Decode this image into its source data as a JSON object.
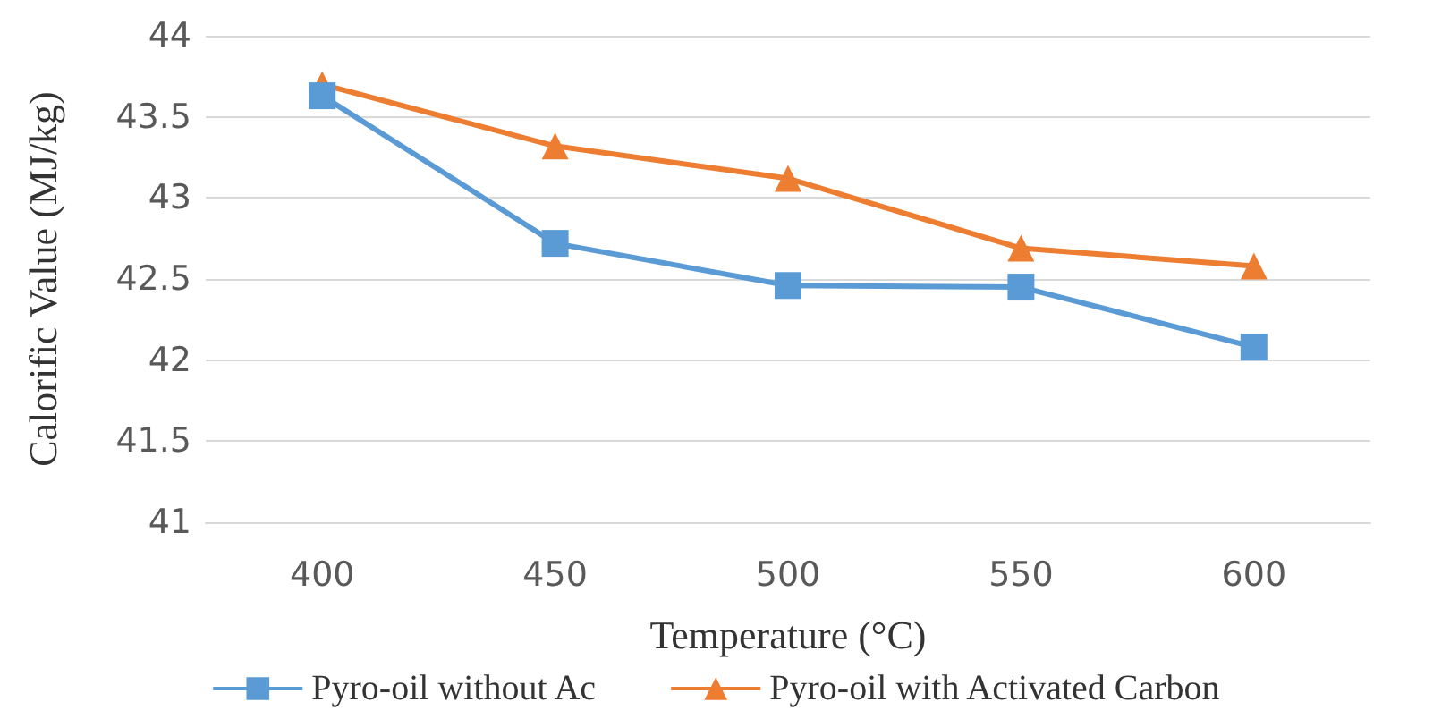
{
  "chart_data": {
    "type": "line",
    "xlabel": "Temperature (°C)",
    "ylabel": "Calorific Value (MJ/kg)",
    "categories": [
      "400",
      "450",
      "500",
      "550",
      "600"
    ],
    "series": [
      {
        "name": "Pyro-oil without Ac",
        "color": "#5b9bd5",
        "marker": "square",
        "values": [
          43.63,
          42.72,
          42.46,
          42.45,
          42.08
        ]
      },
      {
        "name": "Pyro-oil with Activated Carbon",
        "color": "#ed7d31",
        "marker": "triangle",
        "values": [
          43.7,
          43.32,
          43.12,
          42.69,
          42.58
        ]
      }
    ],
    "ylim": [
      41,
      44
    ],
    "yticks": [
      41,
      41.5,
      42,
      42.5,
      43,
      43.5,
      44
    ],
    "grid": "y",
    "legend": "bottom",
    "line_style": "solid"
  }
}
